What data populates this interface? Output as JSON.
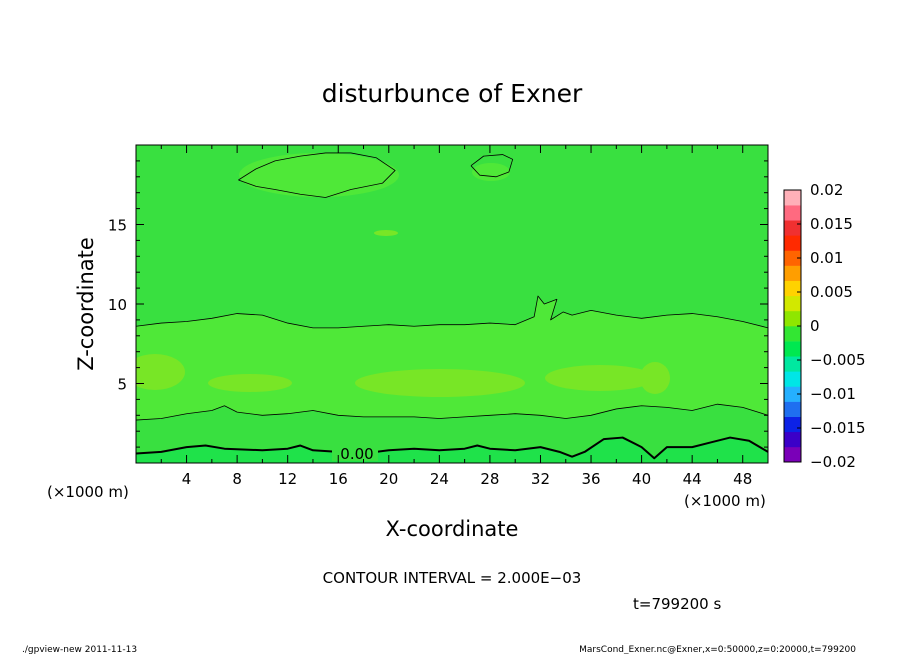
{
  "chart_data": {
    "type": "heatmap",
    "title": "disturbunce of Exner",
    "xlabel": "X-coordinate",
    "ylabel": "Z-coordinate",
    "x_unit": "(×1000 m)",
    "y_unit": "(×1000 m)",
    "xlim": [
      0,
      50
    ],
    "ylim": [
      0,
      20
    ],
    "x_ticks": [
      4,
      8,
      12,
      16,
      20,
      24,
      28,
      32,
      36,
      40,
      44,
      48
    ],
    "y_ticks": [
      5,
      10,
      15
    ],
    "colorbar": {
      "ticks": [
        0.02,
        0.015,
        0.01,
        0.005,
        0,
        -0.005,
        -0.01,
        -0.015,
        -0.02
      ],
      "tick_labels": [
        "0.02",
        "0.015",
        "0.01",
        "0.005",
        "0",
        "−0.005",
        "−0.01",
        "−0.015",
        "−0.02"
      ],
      "range": [
        -0.02,
        0.02
      ],
      "colors": [
        "#7a00b8",
        "#3b00c8",
        "#0c22e6",
        "#1f6ff0",
        "#25b0ff",
        "#00e6e6",
        "#00e8a0",
        "#00e850",
        "#33e633",
        "#8fe600",
        "#d2e800",
        "#ffd200",
        "#ff9e00",
        "#ff6400",
        "#ff2a00",
        "#f03030",
        "#ff6a80",
        "#ffb0b8"
      ]
    },
    "contour_label": "0.00",
    "contour_interval_text": "CONTOUR INTERVAL = 2.000E−03",
    "time_text": "t=799200 s",
    "fill_colors": {
      "base": "#39e040",
      "band": "#4fe838",
      "patch": "#78e626",
      "bottom": "#1fe24a"
    },
    "contours": [
      {
        "level": 0.004,
        "points": [
          [
            8.1,
            17.8
          ],
          [
            9.5,
            18.5
          ],
          [
            11,
            19.0
          ],
          [
            13,
            19.3
          ],
          [
            15,
            19.5
          ],
          [
            17,
            19.5
          ],
          [
            19,
            19.2
          ],
          [
            20.5,
            18.4
          ],
          [
            19.5,
            17.6
          ],
          [
            17,
            17.2
          ],
          [
            15,
            16.7
          ],
          [
            13,
            16.9
          ],
          [
            11,
            17.2
          ],
          [
            9.5,
            17.4
          ],
          [
            8.1,
            17.8
          ]
        ]
      },
      {
        "level": 0.004,
        "points": [
          [
            26.5,
            18.7
          ],
          [
            27.5,
            19.3
          ],
          [
            29,
            19.4
          ],
          [
            29.8,
            19.1
          ],
          [
            29.5,
            18.3
          ],
          [
            28.5,
            18.0
          ],
          [
            27.2,
            18.1
          ],
          [
            26.5,
            18.7
          ]
        ]
      },
      {
        "level": 0.002,
        "points": [
          [
            0,
            8.6
          ],
          [
            2,
            8.8
          ],
          [
            4,
            8.9
          ],
          [
            6,
            9.1
          ],
          [
            8,
            9.4
          ],
          [
            10,
            9.3
          ],
          [
            12,
            8.8
          ],
          [
            14,
            8.5
          ],
          [
            16,
            8.5
          ],
          [
            18,
            8.6
          ],
          [
            20,
            8.7
          ],
          [
            22,
            8.6
          ],
          [
            24,
            8.7
          ],
          [
            26,
            8.7
          ],
          [
            28,
            8.8
          ],
          [
            30,
            8.7
          ],
          [
            31.5,
            9.2
          ],
          [
            31.8,
            10.5
          ],
          [
            32.3,
            10.0
          ],
          [
            33.3,
            10.3
          ],
          [
            32.8,
            9.0
          ],
          [
            33.8,
            9.5
          ],
          [
            34.5,
            9.3
          ],
          [
            36,
            9.6
          ],
          [
            38,
            9.3
          ],
          [
            40,
            9.1
          ],
          [
            42,
            9.3
          ],
          [
            44,
            9.4
          ],
          [
            46,
            9.2
          ],
          [
            48,
            8.9
          ],
          [
            50,
            8.5
          ]
        ]
      },
      {
        "level": 0.002,
        "points": [
          [
            0,
            2.7
          ],
          [
            2,
            2.8
          ],
          [
            4,
            3.1
          ],
          [
            6,
            3.3
          ],
          [
            7,
            3.6
          ],
          [
            8,
            3.2
          ],
          [
            10,
            3.0
          ],
          [
            12,
            3.1
          ],
          [
            14,
            3.3
          ],
          [
            16,
            3.0
          ],
          [
            18,
            2.9
          ],
          [
            20,
            2.9
          ],
          [
            22,
            2.9
          ],
          [
            24,
            2.8
          ],
          [
            26,
            2.9
          ],
          [
            28,
            3.0
          ],
          [
            30,
            3.1
          ],
          [
            32,
            3.0
          ],
          [
            34,
            2.8
          ],
          [
            36,
            3.0
          ],
          [
            38,
            3.4
          ],
          [
            40,
            3.6
          ],
          [
            42,
            3.5
          ],
          [
            44,
            3.3
          ],
          [
            46,
            3.7
          ],
          [
            48,
            3.5
          ],
          [
            50,
            3.0
          ]
        ]
      },
      {
        "level": 0,
        "bold": true,
        "points": [
          [
            0,
            0.6
          ],
          [
            2,
            0.7
          ],
          [
            4,
            1.0
          ],
          [
            5.5,
            1.1
          ],
          [
            7,
            0.9
          ],
          [
            10,
            0.8
          ],
          [
            12,
            0.9
          ],
          [
            13,
            1.1
          ],
          [
            14,
            0.8
          ],
          [
            16,
            0.7
          ],
          [
            18,
            0.6
          ],
          [
            20,
            0.8
          ],
          [
            22,
            0.9
          ],
          [
            24,
            0.8
          ],
          [
            26,
            0.9
          ],
          [
            27,
            1.1
          ],
          [
            28,
            0.9
          ],
          [
            30,
            0.8
          ],
          [
            32,
            1.0
          ],
          [
            33.5,
            0.7
          ],
          [
            34.5,
            0.4
          ],
          [
            35.5,
            0.7
          ],
          [
            37,
            1.5
          ],
          [
            38.5,
            1.6
          ],
          [
            40,
            1.0
          ],
          [
            41,
            0.3
          ],
          [
            42,
            1.0
          ],
          [
            44,
            1.0
          ],
          [
            45.5,
            1.3
          ],
          [
            47,
            1.6
          ],
          [
            48.5,
            1.4
          ],
          [
            50,
            0.7
          ]
        ]
      }
    ]
  },
  "footer": {
    "left": "./gpview-new  2011-11-13",
    "right": "MarsCond_Exner.nc@Exner,x=0:50000,z=0:20000,t=799200"
  }
}
